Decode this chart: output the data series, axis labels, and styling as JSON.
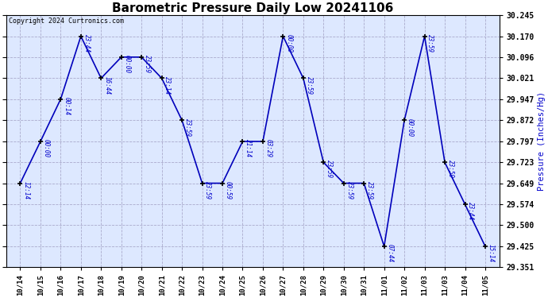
{
  "title": "Barometric Pressure Daily Low 20241106",
  "ylabel": "Pressure (Inches/Hg)",
  "copyright": "Copyright 2024 Curtronics.com",
  "line_color": "#0000bb",
  "marker_color": "#000000",
  "bg_plot": "#dde8ff",
  "bg_fig": "#ffffff",
  "grid_color": "#aaaacc",
  "label_color": "#0000cc",
  "title_color": "#000000",
  "copyright_color": "#000000",
  "ylim": [
    29.351,
    30.245
  ],
  "yticks": [
    29.351,
    29.425,
    29.5,
    29.574,
    29.649,
    29.723,
    29.797,
    29.872,
    29.947,
    30.021,
    30.096,
    30.17,
    30.245
  ],
  "x_values": [
    0,
    1,
    2,
    3,
    4,
    5,
    6,
    7,
    8,
    9,
    10,
    11,
    12,
    13,
    14,
    15,
    16,
    17,
    18,
    19,
    20,
    21,
    22,
    23
  ],
  "y_values": [
    29.649,
    29.797,
    29.947,
    30.17,
    30.021,
    30.096,
    30.096,
    30.021,
    29.872,
    29.649,
    29.649,
    29.797,
    29.797,
    30.17,
    30.021,
    29.723,
    29.649,
    29.649,
    29.425,
    29.872,
    30.17,
    29.723,
    29.574,
    29.425
  ],
  "point_labels": [
    "12:14",
    "00:00",
    "00:14",
    "23:44",
    "16:44",
    "00:00",
    "23:59",
    "23:14",
    "23:59",
    "23:59",
    "00:59",
    "21:14",
    "03:29",
    "00:00",
    "23:59",
    "23:59",
    "23:59",
    "23:59",
    "07:44",
    "00:00",
    "23:59",
    "23:59",
    "23:44",
    "15:14"
  ],
  "x_tick_labels": [
    "10/14",
    "10/15",
    "10/16",
    "10/17",
    "10/18",
    "10/19",
    "10/20",
    "10/21",
    "10/22",
    "10/23",
    "10/24",
    "10/25",
    "10/26",
    "10/27",
    "10/28",
    "10/29",
    "10/30",
    "10/31",
    "11/01",
    "11/02",
    "11/03",
    "11/03",
    "11/04",
    "11/05"
  ]
}
